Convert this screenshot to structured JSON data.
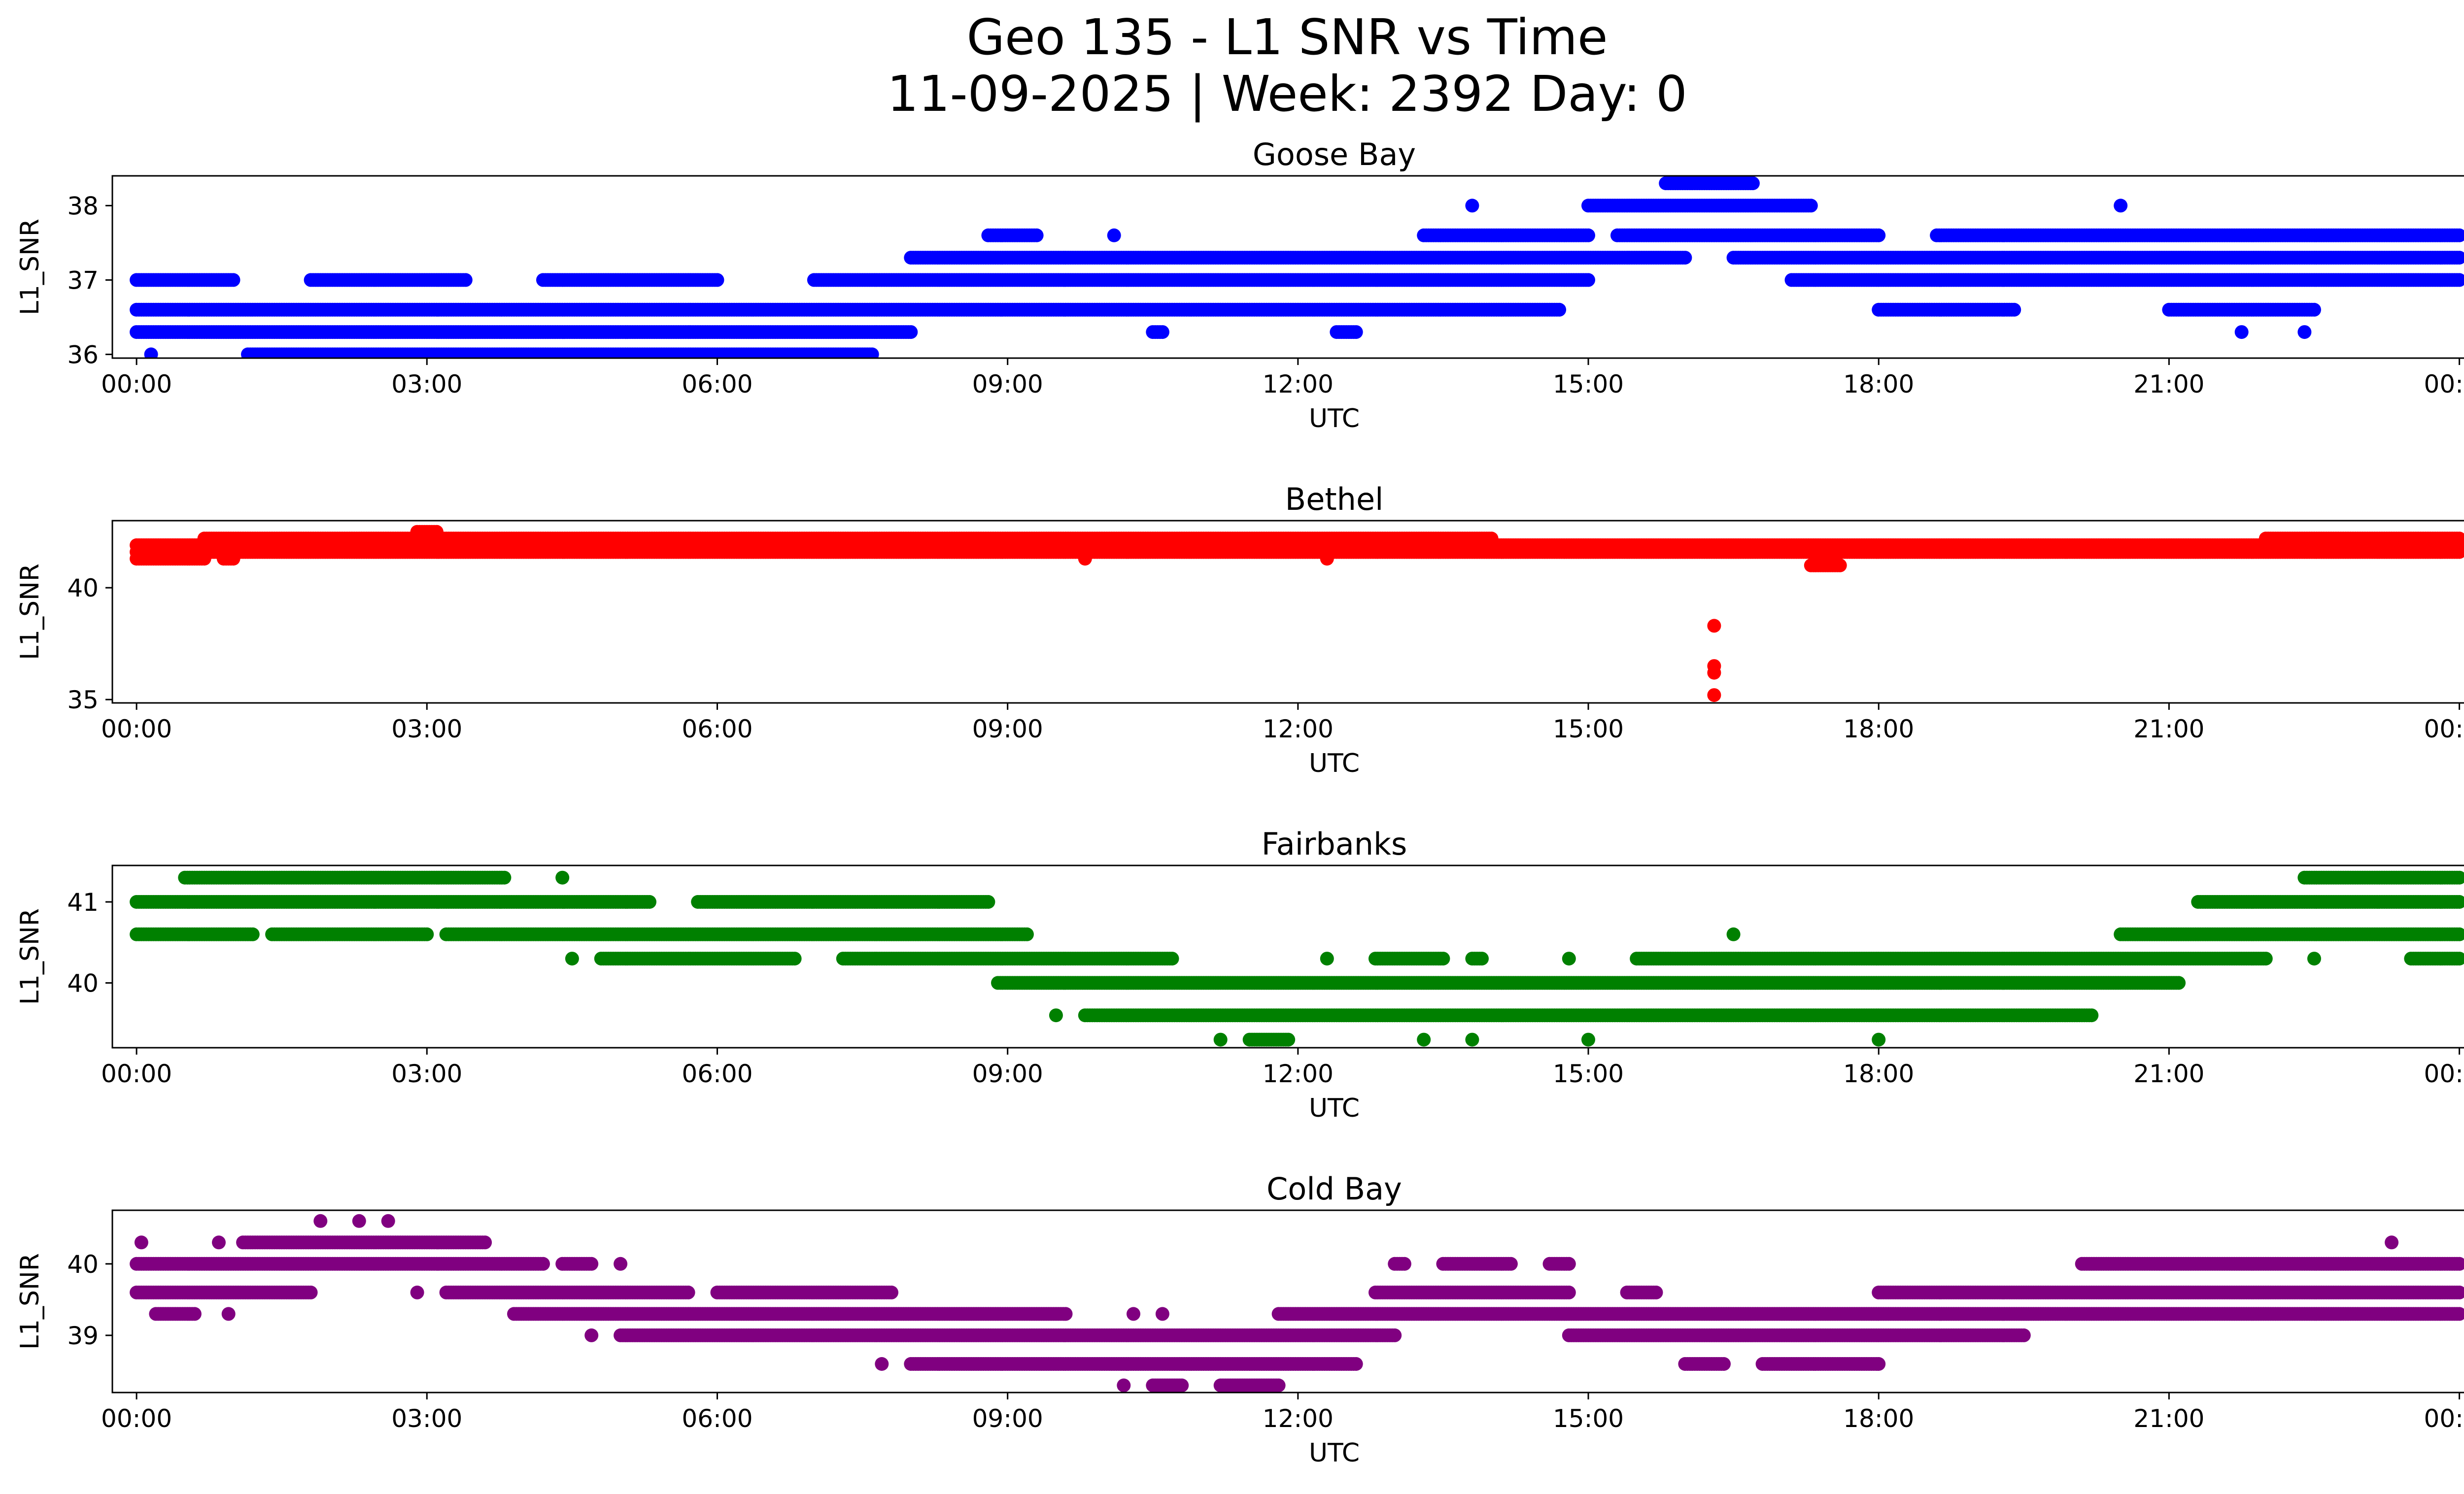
{
  "figure": {
    "title_line1": "Geo 135 - L1 SNR vs Time",
    "title_line2": "11-09-2025 | Week: 2392 Day: 0"
  },
  "chart_data": [
    {
      "type": "scatter",
      "title": "Goose Bay",
      "color": "#0000ff",
      "xlabel": "UTC",
      "ylabel": "L1_SNR",
      "xlim": [
        -0.25,
        25.0
      ],
      "ylim": [
        35.95,
        38.4
      ],
      "xticks": [
        0,
        3,
        6,
        9,
        12,
        15,
        18,
        21,
        24
      ],
      "xtick_labels": [
        "00:00",
        "03:00",
        "06:00",
        "09:00",
        "12:00",
        "15:00",
        "18:00",
        "21:00",
        "00:00"
      ],
      "yticks": [
        36,
        37,
        38
      ],
      "ytick_labels": [
        "36",
        "37",
        "38"
      ],
      "bands": [
        {
          "y": 36.0,
          "ranges": [
            [
              0.15,
              0.15
            ],
            [
              1.15,
              7.6
            ]
          ]
        },
        {
          "y": 36.3,
          "ranges": [
            [
              0,
              8.0
            ],
            [
              10.5,
              10.6
            ],
            [
              12.4,
              12.6
            ],
            [
              21.75,
              21.75
            ],
            [
              22.4,
              22.4
            ]
          ]
        },
        {
          "y": 36.6,
          "ranges": [
            [
              0,
              14.7
            ],
            [
              18.0,
              19.4
            ],
            [
              21.0,
              22.5
            ]
          ]
        },
        {
          "y": 37.0,
          "ranges": [
            [
              0,
              1.0
            ],
            [
              1.8,
              3.4
            ],
            [
              4.2,
              6.0
            ],
            [
              7.0,
              15.0
            ],
            [
              17.1,
              24.0
            ]
          ]
        },
        {
          "y": 37.3,
          "ranges": [
            [
              8.0,
              16.0
            ],
            [
              16.5,
              24.0
            ]
          ]
        },
        {
          "y": 37.6,
          "ranges": [
            [
              8.8,
              9.3
            ],
            [
              10.1,
              10.1
            ],
            [
              13.3,
              15.0
            ],
            [
              15.3,
              18.0
            ],
            [
              18.6,
              24.0
            ]
          ]
        },
        {
          "y": 38.0,
          "ranges": [
            [
              13.8,
              13.8
            ],
            [
              15.0,
              17.3
            ],
            [
              20.5,
              20.5
            ]
          ]
        },
        {
          "y": 38.3,
          "ranges": [
            [
              15.8,
              16.7
            ]
          ]
        }
      ]
    },
    {
      "type": "scatter",
      "title": "Bethel",
      "color": "#ff0000",
      "xlabel": "UTC",
      "ylabel": "L1_SNR",
      "xlim": [
        -0.25,
        25.0
      ],
      "ylim": [
        34.85,
        43.0
      ],
      "xticks": [
        0,
        3,
        6,
        9,
        12,
        15,
        18,
        21,
        24
      ],
      "xtick_labels": [
        "00:00",
        "03:00",
        "06:00",
        "09:00",
        "12:00",
        "15:00",
        "18:00",
        "21:00",
        "00:00"
      ],
      "yticks": [
        35,
        40
      ],
      "ytick_labels": [
        "35",
        "40"
      ],
      "bands": [
        {
          "y": 41.3,
          "ranges": [
            [
              0,
              0.7
            ],
            [
              0.9,
              1.0
            ],
            [
              9.8,
              9.8
            ],
            [
              12.3,
              12.3
            ]
          ]
        },
        {
          "y": 41.6,
          "ranges": [
            [
              0,
              24.0
            ]
          ]
        },
        {
          "y": 41.9,
          "ranges": [
            [
              0,
              24.0
            ]
          ]
        },
        {
          "y": 42.2,
          "ranges": [
            [
              0.7,
              14.0
            ],
            [
              22.0,
              24.0
            ]
          ]
        },
        {
          "y": 42.5,
          "ranges": [
            [
              2.9,
              3.1
            ]
          ]
        },
        {
          "y": 41.0,
          "ranges": [
            [
              17.3,
              17.6
            ]
          ]
        },
        {
          "y": 38.3,
          "ranges": [
            [
              16.3,
              16.3
            ]
          ]
        },
        {
          "y": 36.5,
          "ranges": [
            [
              16.3,
              16.3
            ]
          ]
        },
        {
          "y": 36.2,
          "ranges": [
            [
              16.3,
              16.3
            ]
          ]
        },
        {
          "y": 35.2,
          "ranges": [
            [
              16.3,
              16.3
            ]
          ]
        }
      ]
    },
    {
      "type": "scatter",
      "title": "Fairbanks",
      "color": "#008000",
      "xlabel": "UTC",
      "ylabel": "L1_SNR",
      "xlim": [
        -0.25,
        25.0
      ],
      "ylim": [
        39.2,
        41.45
      ],
      "xticks": [
        0,
        3,
        6,
        9,
        12,
        15,
        18,
        21,
        24
      ],
      "xtick_labels": [
        "00:00",
        "03:00",
        "06:00",
        "09:00",
        "12:00",
        "15:00",
        "18:00",
        "21:00",
        "00:00"
      ],
      "yticks": [
        40,
        41
      ],
      "ytick_labels": [
        "40",
        "41"
      ],
      "bands": [
        {
          "y": 41.3,
          "ranges": [
            [
              0.5,
              3.8
            ],
            [
              4.4,
              4.4
            ],
            [
              22.4,
              24.0
            ]
          ]
        },
        {
          "y": 41.0,
          "ranges": [
            [
              0,
              5.3
            ],
            [
              5.8,
              8.8
            ],
            [
              21.3,
              24.0
            ]
          ]
        },
        {
          "y": 40.6,
          "ranges": [
            [
              0,
              1.2
            ],
            [
              1.4,
              3.0
            ],
            [
              3.2,
              9.2
            ],
            [
              16.5,
              16.5
            ],
            [
              20.5,
              24.0
            ]
          ]
        },
        {
          "y": 40.3,
          "ranges": [
            [
              4.5,
              4.5
            ],
            [
              4.8,
              6.8
            ],
            [
              7.3,
              10.7
            ],
            [
              12.3,
              12.3
            ],
            [
              12.8,
              13.5
            ],
            [
              13.8,
              13.9
            ],
            [
              14.8,
              14.8
            ],
            [
              15.5,
              22.0
            ],
            [
              22.5,
              22.5
            ],
            [
              23.5,
              24.0
            ]
          ]
        },
        {
          "y": 40.0,
          "ranges": [
            [
              8.9,
              21.1
            ]
          ]
        },
        {
          "y": 39.6,
          "ranges": [
            [
              9.5,
              9.5
            ],
            [
              9.8,
              20.2
            ]
          ]
        },
        {
          "y": 39.3,
          "ranges": [
            [
              11.2,
              11.2
            ],
            [
              11.5,
              11.9
            ],
            [
              13.3,
              13.3
            ],
            [
              13.8,
              13.8
            ],
            [
              15.0,
              15.0
            ],
            [
              18.0,
              18.0
            ]
          ]
        }
      ]
    },
    {
      "type": "scatter",
      "title": "Cold Bay",
      "color": "#800080",
      "xlabel": "UTC",
      "ylabel": "L1_SNR",
      "xlim": [
        -0.25,
        25.0
      ],
      "ylim": [
        38.2,
        40.75
      ],
      "xticks": [
        0,
        3,
        6,
        9,
        12,
        15,
        18,
        21,
        24
      ],
      "xtick_labels": [
        "00:00",
        "03:00",
        "06:00",
        "09:00",
        "12:00",
        "15:00",
        "18:00",
        "21:00",
        "00:00"
      ],
      "yticks": [
        39,
        40
      ],
      "ytick_labels": [
        "39",
        "40"
      ],
      "bands": [
        {
          "y": 40.6,
          "ranges": [
            [
              1.9,
              1.9
            ],
            [
              2.3,
              2.3
            ],
            [
              2.6,
              2.6
            ]
          ]
        },
        {
          "y": 40.3,
          "ranges": [
            [
              0.05,
              0.05
            ],
            [
              0.85,
              0.85
            ],
            [
              1.1,
              3.6
            ],
            [
              23.3,
              23.3
            ]
          ]
        },
        {
          "y": 40.0,
          "ranges": [
            [
              0,
              4.2
            ],
            [
              4.4,
              4.7
            ],
            [
              5.0,
              5.0
            ],
            [
              13.0,
              13.1
            ],
            [
              13.5,
              14.2
            ],
            [
              14.6,
              14.8
            ],
            [
              20.1,
              24.0
            ]
          ]
        },
        {
          "y": 39.6,
          "ranges": [
            [
              0,
              1.8
            ],
            [
              2.9,
              2.9
            ],
            [
              3.2,
              5.7
            ],
            [
              6.0,
              7.8
            ],
            [
              12.8,
              14.8
            ],
            [
              15.4,
              15.7
            ],
            [
              18.0,
              24.0
            ]
          ]
        },
        {
          "y": 39.3,
          "ranges": [
            [
              0.2,
              0.6
            ],
            [
              0.95,
              0.95
            ],
            [
              3.9,
              9.6
            ],
            [
              10.3,
              10.3
            ],
            [
              10.6,
              10.6
            ],
            [
              11.8,
              24.0
            ]
          ]
        },
        {
          "y": 39.0,
          "ranges": [
            [
              4.7,
              4.7
            ],
            [
              5.0,
              13.0
            ],
            [
              14.8,
              19.5
            ]
          ]
        },
        {
          "y": 38.6,
          "ranges": [
            [
              7.7,
              7.7
            ],
            [
              8.0,
              12.6
            ],
            [
              16.0,
              16.4
            ],
            [
              16.8,
              18.0
            ]
          ]
        },
        {
          "y": 38.3,
          "ranges": [
            [
              10.2,
              10.2
            ],
            [
              10.5,
              10.8
            ],
            [
              11.2,
              11.8
            ]
          ]
        }
      ]
    }
  ]
}
